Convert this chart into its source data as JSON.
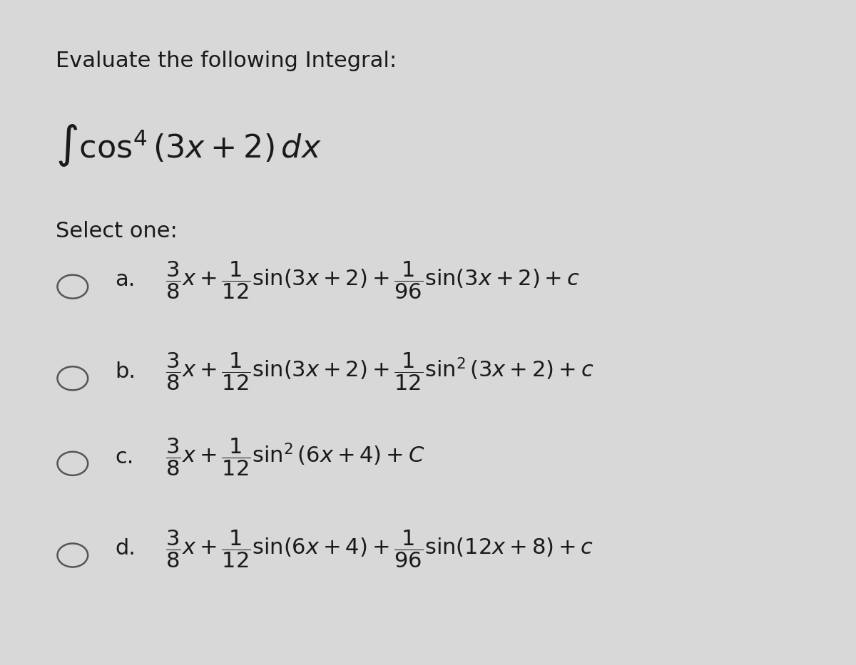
{
  "background_color": "#d8d8d8",
  "title": "Evaluate the following Integral:",
  "integral_expr": "$\\int \\cos^4(3x+2)\\,dx$",
  "select_one": "Select one:",
  "options": [
    {
      "label": "a.",
      "formula": "$\\dfrac{3}{8}x + \\dfrac{1}{12}\\sin(3x+2) + \\dfrac{1}{96}\\sin(3x+2) + c$"
    },
    {
      "label": "b.",
      "formula": "$\\dfrac{3}{8}x + \\dfrac{1}{12}\\sin(3x+2) + \\dfrac{1}{12}\\sin^2(3x+2) + c$"
    },
    {
      "label": "c.",
      "formula": "$\\dfrac{3}{8}x + \\dfrac{1}{12}\\sin^2(6x+4) + C$"
    },
    {
      "label": "d.",
      "formula": "$\\dfrac{3}{8}x + \\dfrac{1}{12}\\sin(6x+4) + \\dfrac{1}{96}\\sin(12x+8) + c$"
    }
  ],
  "text_color": "#1a1a1a",
  "circle_color": "#555555",
  "font_size_title": 22,
  "font_size_integral": 32,
  "font_size_select": 22,
  "font_size_options": 22
}
